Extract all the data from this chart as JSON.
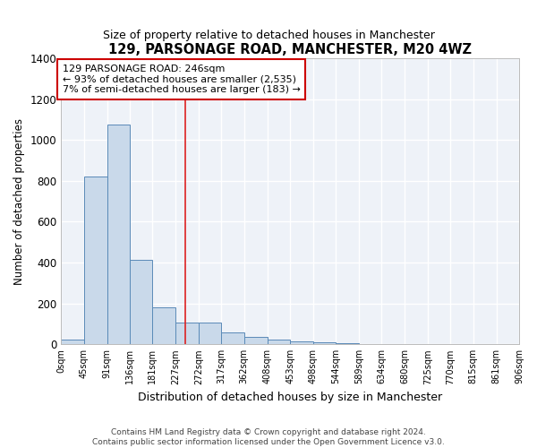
{
  "title": "129, PARSONAGE ROAD, MANCHESTER, M20 4WZ",
  "subtitle": "Size of property relative to detached houses in Manchester",
  "xlabel": "Distribution of detached houses by size in Manchester",
  "ylabel": "Number of detached properties",
  "bar_color": "#c9d9ea",
  "bar_edge_color": "#5a8ab8",
  "background_color": "#ffffff",
  "plot_bg_color": "#eef2f8",
  "grid_color": "#ffffff",
  "bin_edges": [
    0,
    45,
    91,
    136,
    181,
    227,
    272,
    317,
    362,
    408,
    453,
    498,
    544,
    589,
    634,
    680,
    725,
    770,
    815,
    861,
    906
  ],
  "bar_heights": [
    25,
    820,
    1075,
    415,
    180,
    105,
    105,
    60,
    35,
    25,
    15,
    10,
    5,
    3,
    2,
    1,
    1,
    0,
    0,
    0
  ],
  "tick_labels": [
    "0sqm",
    "45sqm",
    "91sqm",
    "136sqm",
    "181sqm",
    "227sqm",
    "272sqm",
    "317sqm",
    "362sqm",
    "408sqm",
    "453sqm",
    "498sqm",
    "544sqm",
    "589sqm",
    "634sqm",
    "680sqm",
    "725sqm",
    "770sqm",
    "815sqm",
    "861sqm",
    "906sqm"
  ],
  "ylim": [
    0,
    1400
  ],
  "yticks": [
    0,
    200,
    400,
    600,
    800,
    1000,
    1200,
    1400
  ],
  "property_line_x": 246,
  "property_line_color": "#dd2222",
  "annotation_text_line1": "129 PARSONAGE ROAD: 246sqm",
  "annotation_text_line2": "← 93% of detached houses are smaller (2,535)",
  "annotation_text_line3": "7% of semi-detached houses are larger (183) →",
  "annotation_box_color": "#ffffff",
  "annotation_box_edge": "#cc0000",
  "footer_text": "Contains HM Land Registry data © Crown copyright and database right 2024.\nContains public sector information licensed under the Open Government Licence v3.0."
}
